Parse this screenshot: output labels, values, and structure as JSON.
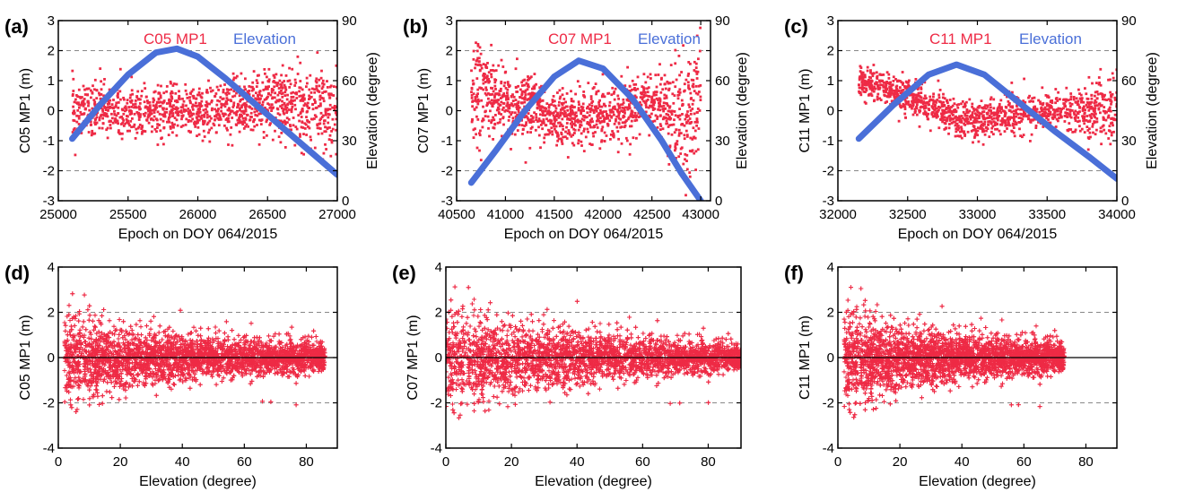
{
  "colors": {
    "mp_points": "#ee2a45",
    "elevation_line": "#4a6fd8",
    "grid": "#888888",
    "zero_line": "#000000"
  },
  "chart_data": [
    {
      "id": "a",
      "type": "scatter+line",
      "label": "(a)",
      "legend": [
        "C05 MP1",
        "Elevation"
      ],
      "xlabel": "Epoch on DOY 064/2015",
      "ylabel": "C05 MP1 (m)",
      "y2label": "Elevation (degree)",
      "xlim": [
        25000,
        27000
      ],
      "xticks": [
        "25000",
        "25500",
        "26000",
        "26500",
        "27000"
      ],
      "ylim": [
        -3,
        3
      ],
      "yticks": [
        "-3",
        "-2",
        "-1",
        "0",
        "1",
        "2",
        "3"
      ],
      "y2lim": [
        0,
        90
      ],
      "y2ticks": [
        "0",
        "30",
        "60",
        "90"
      ],
      "grid_y": [
        -2,
        2
      ],
      "grid_style": "dashed",
      "elevation_series": {
        "x": [
          25100,
          25300,
          25500,
          25700,
          25850,
          26000,
          26200,
          26400,
          26600,
          26800,
          27000
        ],
        "y": [
          31,
          48,
          63,
          74,
          76,
          72,
          61,
          49,
          37,
          25,
          13
        ]
      },
      "mp1_scatter": {
        "x_range": [
          25100,
          27000
        ],
        "stats": [
          {
            "x": 25100,
            "mean": 0.1,
            "sd": 0.45
          },
          {
            "x": 25600,
            "mean": -0.1,
            "sd": 0.45
          },
          {
            "x": 26100,
            "mean": 0.0,
            "sd": 0.4
          },
          {
            "x": 26500,
            "mean": 0.3,
            "sd": 0.5
          },
          {
            "x": 27000,
            "mean": 0.0,
            "sd": 0.7
          }
        ]
      }
    },
    {
      "id": "b",
      "type": "scatter+line",
      "label": "(b)",
      "legend": [
        "C07 MP1",
        "Elevation"
      ],
      "xlabel": "Epoch on DOY 064/2015",
      "ylabel": "C07 MP1 (m)",
      "y2label": "Elevation (degree)",
      "xlim": [
        40500,
        43100
      ],
      "xticks": [
        "40500",
        "41000",
        "41500",
        "42000",
        "42500",
        "43000"
      ],
      "ylim": [
        -3,
        3
      ],
      "yticks": [
        "-3",
        "-2",
        "-1",
        "0",
        "1",
        "2",
        "3"
      ],
      "y2lim": [
        0,
        90
      ],
      "y2ticks": [
        "0",
        "30",
        "60",
        "90"
      ],
      "grid_y": [
        -2,
        2
      ],
      "grid_style": "dashed",
      "elevation_series": {
        "x": [
          40650,
          40900,
          41200,
          41500,
          41750,
          42000,
          42300,
          42600,
          42800,
          43000
        ],
        "y": [
          9,
          25,
          45,
          62,
          70,
          66,
          51,
          30,
          14,
          0
        ]
      },
      "mp1_scatter": {
        "x_range": [
          40650,
          43000
        ],
        "stats": [
          {
            "x": 40650,
            "mean": 0.8,
            "sd": 0.9
          },
          {
            "x": 41000,
            "mean": 0.3,
            "sd": 0.6
          },
          {
            "x": 41500,
            "mean": -0.2,
            "sd": 0.45
          },
          {
            "x": 42000,
            "mean": -0.2,
            "sd": 0.45
          },
          {
            "x": 42500,
            "mean": 0.4,
            "sd": 0.5
          },
          {
            "x": 42800,
            "mean": -0.5,
            "sd": 1.0
          },
          {
            "x": 43000,
            "mean": 0.2,
            "sd": 1.3
          }
        ]
      }
    },
    {
      "id": "c",
      "type": "scatter+line",
      "label": "(c)",
      "legend": [
        "C11 MP1",
        "Elevation"
      ],
      "xlabel": "Epoch on DOY 064/2015",
      "ylabel": "C11 MP1 (m)",
      "y2label": "Elevation (degree)",
      "xlim": [
        32000,
        34000
      ],
      "xticks": [
        "32000",
        "32500",
        "33000",
        "33500",
        "34000"
      ],
      "ylim": [
        -3,
        3
      ],
      "yticks": [
        "-3",
        "-2",
        "-1",
        "0",
        "1",
        "2",
        "3"
      ],
      "y2lim": [
        0,
        90
      ],
      "y2ticks": [
        "0",
        "30",
        "60",
        "90"
      ],
      "grid_y": [
        -2,
        2
      ],
      "grid_style": "dashed",
      "elevation_series": {
        "x": [
          32150,
          32400,
          32650,
          32850,
          33050,
          33300,
          33550,
          33800,
          34000
        ],
        "y": [
          31,
          48,
          63,
          68,
          63,
          49,
          35,
          22,
          11
        ]
      },
      "mp1_scatter": {
        "x_range": [
          32150,
          34000
        ],
        "stats": [
          {
            "x": 32150,
            "mean": 1.0,
            "sd": 0.3
          },
          {
            "x": 32500,
            "mean": 0.5,
            "sd": 0.3
          },
          {
            "x": 32900,
            "mean": -0.4,
            "sd": 0.3
          },
          {
            "x": 33300,
            "mean": -0.1,
            "sd": 0.3
          },
          {
            "x": 33700,
            "mean": 0.0,
            "sd": 0.35
          },
          {
            "x": 34000,
            "mean": 0.1,
            "sd": 0.6
          }
        ]
      }
    },
    {
      "id": "d",
      "type": "scatter",
      "label": "(d)",
      "xlabel": "Elevation (degree)",
      "ylabel": "C05 MP1 (m)",
      "xlim": [
        0,
        90
      ],
      "xticks": [
        "0",
        "20",
        "40",
        "60",
        "80"
      ],
      "ylim": [
        -4,
        4
      ],
      "yticks": [
        "-4",
        "-2",
        "0",
        "2",
        "4"
      ],
      "grid_y": [
        -2,
        2
      ],
      "grid_style": "dashed",
      "zero_line": true,
      "mp1_scatter": {
        "x_range": [
          2,
          86
        ],
        "stats": [
          {
            "x": 2,
            "sd": 1.0
          },
          {
            "x": 20,
            "sd": 0.65
          },
          {
            "x": 40,
            "sd": 0.5
          },
          {
            "x": 60,
            "sd": 0.4
          },
          {
            "x": 86,
            "sd": 0.35
          }
        ]
      }
    },
    {
      "id": "e",
      "type": "scatter",
      "label": "(e)",
      "xlabel": "Elevation (degree)",
      "ylabel": "C07 MP1 (m)",
      "xlim": [
        0,
        90
      ],
      "xticks": [
        "0",
        "20",
        "40",
        "60",
        "80"
      ],
      "ylim": [
        -4,
        4
      ],
      "yticks": [
        "-4",
        "-2",
        "0",
        "2",
        "4"
      ],
      "grid_y": [
        -2,
        2
      ],
      "grid_style": "dashed",
      "zero_line": true,
      "mp1_scatter": {
        "x_range": [
          0,
          90
        ],
        "stats": [
          {
            "x": 0,
            "sd": 1.1
          },
          {
            "x": 20,
            "sd": 0.75
          },
          {
            "x": 40,
            "sd": 0.6
          },
          {
            "x": 60,
            "sd": 0.45
          },
          {
            "x": 90,
            "sd": 0.3
          }
        ]
      }
    },
    {
      "id": "f",
      "type": "scatter",
      "label": "(f)",
      "xlabel": "Elevation (degree)",
      "ylabel": "C11 MP1 (m)",
      "xlim": [
        0,
        90
      ],
      "xticks": [
        "0",
        "20",
        "40",
        "60",
        "80"
      ],
      "ylim": [
        -4,
        4
      ],
      "yticks": [
        "-4",
        "-2",
        "0",
        "2",
        "4"
      ],
      "grid_y": [
        -2,
        2
      ],
      "grid_style": "dashed",
      "zero_line": true,
      "mp1_scatter": {
        "x_range": [
          2,
          73
        ],
        "stats": [
          {
            "x": 2,
            "sd": 1.1
          },
          {
            "x": 20,
            "sd": 0.65
          },
          {
            "x": 40,
            "sd": 0.5
          },
          {
            "x": 60,
            "sd": 0.4
          },
          {
            "x": 73,
            "sd": 0.35
          }
        ]
      }
    }
  ]
}
